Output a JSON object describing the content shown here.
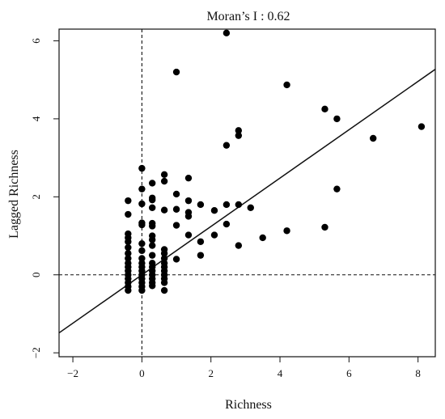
{
  "chart_data": {
    "type": "scatter",
    "title": "Moran’s I : 0.62",
    "xlabel": "Richness",
    "ylabel": "Lagged Richness",
    "xlim": [
      -2.4,
      8.5
    ],
    "ylim": [
      -2.1,
      6.3
    ],
    "xticks": [
      -2,
      0,
      2,
      4,
      6,
      8
    ],
    "yticks": [
      -2,
      0,
      2,
      4,
      6
    ],
    "grid": false,
    "reference_lines": {
      "vertical_x": 0,
      "horizontal_y": 0,
      "style": "dashed"
    },
    "regression_line": {
      "slope": 0.62,
      "intercept": 0.0
    },
    "points": [
      [
        2.45,
        6.2
      ],
      [
        1.0,
        5.2
      ],
      [
        4.2,
        4.87
      ],
      [
        5.3,
        4.25
      ],
      [
        5.65,
        4.0
      ],
      [
        8.1,
        3.8
      ],
      [
        6.7,
        3.5
      ],
      [
        2.8,
        3.7
      ],
      [
        2.8,
        3.57
      ],
      [
        2.45,
        3.32
      ],
      [
        5.65,
        2.2
      ],
      [
        0.0,
        2.73
      ],
      [
        0.65,
        2.57
      ],
      [
        0.65,
        2.4
      ],
      [
        0.3,
        2.35
      ],
      [
        1.35,
        2.48
      ],
      [
        0.0,
        2.2
      ],
      [
        1.0,
        2.07
      ],
      [
        0.3,
        1.97
      ],
      [
        0.3,
        1.92
      ],
      [
        1.35,
        1.9
      ],
      [
        -0.4,
        1.9
      ],
      [
        0.0,
        1.82
      ],
      [
        1.7,
        1.8
      ],
      [
        2.45,
        1.8
      ],
      [
        2.8,
        1.8
      ],
      [
        0.3,
        1.72
      ],
      [
        1.0,
        1.68
      ],
      [
        0.65,
        1.66
      ],
      [
        2.1,
        1.65
      ],
      [
        3.15,
        1.72
      ],
      [
        -0.4,
        1.55
      ],
      [
        1.35,
        1.6
      ],
      [
        1.35,
        1.5
      ],
      [
        0.0,
        1.33
      ],
      [
        0.0,
        1.28
      ],
      [
        0.3,
        1.32
      ],
      [
        0.3,
        1.25
      ],
      [
        1.0,
        1.27
      ],
      [
        2.45,
        1.3
      ],
      [
        5.3,
        1.22
      ],
      [
        4.2,
        1.13
      ],
      [
        -0.4,
        1.05
      ],
      [
        -0.4,
        0.95
      ],
      [
        1.35,
        1.02
      ],
      [
        2.1,
        1.02
      ],
      [
        0.3,
        1.0
      ],
      [
        3.5,
        0.95
      ],
      [
        -0.4,
        0.85
      ],
      [
        0.3,
        0.9
      ],
      [
        1.7,
        0.85
      ],
      [
        0.0,
        0.8
      ],
      [
        2.8,
        0.75
      ],
      [
        -0.4,
        0.7
      ],
      [
        0.3,
        0.75
      ],
      [
        0.65,
        0.65
      ],
      [
        0.0,
        0.62
      ],
      [
        -0.4,
        0.55
      ],
      [
        1.7,
        0.5
      ],
      [
        0.3,
        0.5
      ],
      [
        0.65,
        0.55
      ],
      [
        1.0,
        0.4
      ],
      [
        -0.4,
        0.42
      ],
      [
        0.0,
        0.42
      ],
      [
        0.65,
        0.42
      ],
      [
        -0.4,
        0.3
      ],
      [
        0.0,
        0.3
      ],
      [
        0.3,
        0.3
      ],
      [
        0.65,
        0.3
      ],
      [
        -0.4,
        0.2
      ],
      [
        0.0,
        0.2
      ],
      [
        0.3,
        0.2
      ],
      [
        0.65,
        0.2
      ],
      [
        -0.4,
        0.1
      ],
      [
        0.0,
        0.1
      ],
      [
        0.3,
        0.1
      ],
      [
        0.65,
        0.1
      ],
      [
        -0.4,
        0.0
      ],
      [
        0.0,
        0.0
      ],
      [
        0.3,
        0.0
      ],
      [
        0.65,
        0.0
      ],
      [
        -0.4,
        -0.1
      ],
      [
        0.0,
        -0.1
      ],
      [
        0.3,
        -0.1
      ],
      [
        0.65,
        -0.1
      ],
      [
        -0.4,
        -0.2
      ],
      [
        0.0,
        -0.2
      ],
      [
        0.3,
        -0.2
      ],
      [
        0.65,
        -0.2
      ],
      [
        -0.4,
        -0.3
      ],
      [
        0.0,
        -0.3
      ],
      [
        0.3,
        -0.28
      ],
      [
        0.0,
        -0.4
      ],
      [
        -0.4,
        -0.4
      ],
      [
        0.65,
        -0.4
      ]
    ]
  }
}
